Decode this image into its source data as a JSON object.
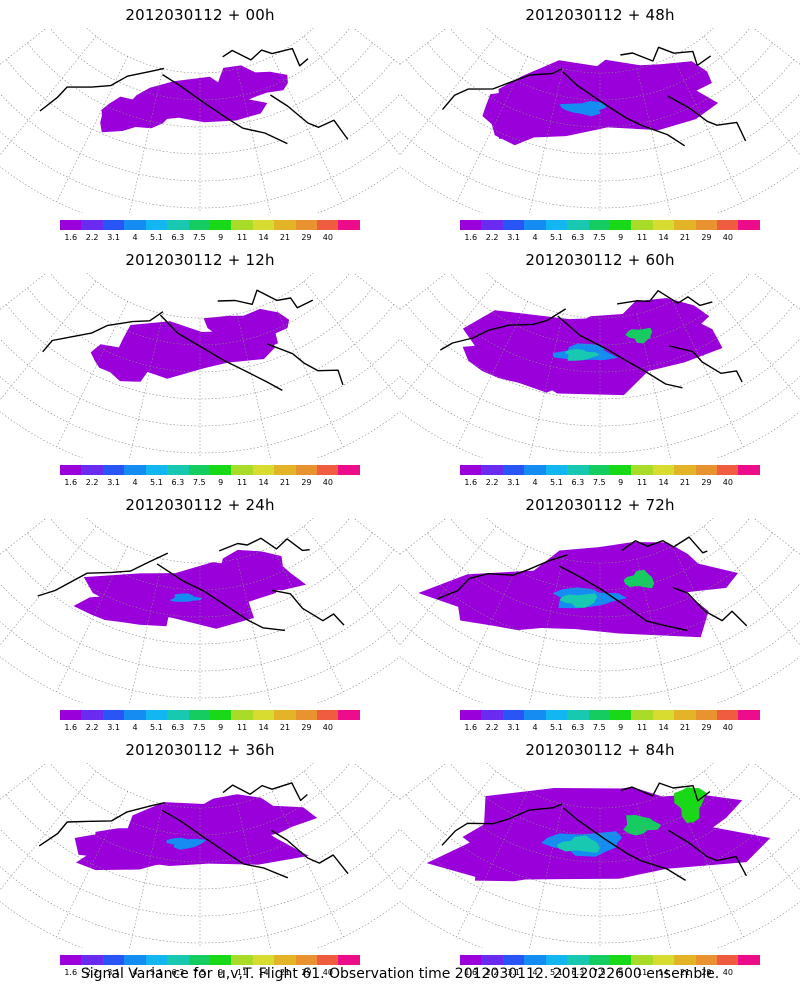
{
  "colorbar": {
    "labels": [
      "1.6",
      "2.2",
      "3.1",
      "4",
      "5.1",
      "6.3",
      "7.5",
      "9",
      "11",
      "14",
      "21",
      "29",
      "40"
    ],
    "colors": [
      "#9a00d9",
      "#6a2af0",
      "#2a55f5",
      "#148cf2",
      "#12b6f0",
      "#18c8b0",
      "#14cc60",
      "#18d818",
      "#a8dc28",
      "#d8dc30",
      "#e4b428",
      "#e89230",
      "#f05c40",
      "#ec0c8c"
    ]
  },
  "panels": [
    {
      "title": "2012030112 + 00h",
      "activity": 0.1
    },
    {
      "title": "2012030112 + 48h",
      "activity": 0.55
    },
    {
      "title": "2012030112 + 12h",
      "activity": 0.2
    },
    {
      "title": "2012030112 + 60h",
      "activity": 0.7
    },
    {
      "title": "2012030112 + 24h",
      "activity": 0.35
    },
    {
      "title": "2012030112 + 72h",
      "activity": 0.82
    },
    {
      "title": "2012030112 + 36h",
      "activity": 0.45
    },
    {
      "title": "2012030112 + 84h",
      "activity": 0.95
    }
  ],
  "caption": "Signal Variance for u,v,T. Flight 61. Observation time 2012030112. 2012022600 ensemble."
}
